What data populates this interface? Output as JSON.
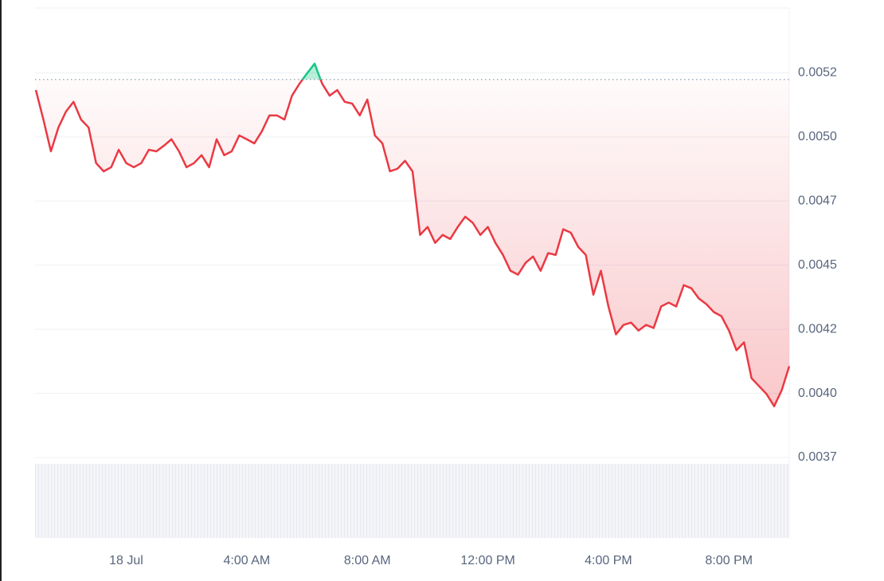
{
  "chart_data": {
    "type": "line",
    "x": [
      -3,
      -2.75,
      -2.5,
      -2.25,
      -2,
      -1.75,
      -1.5,
      -1.25,
      -1,
      -0.75,
      -0.5,
      -0.25,
      0,
      0.25,
      0.5,
      0.75,
      1,
      1.25,
      1.5,
      1.75,
      2,
      2.25,
      2.5,
      2.75,
      3,
      3.25,
      3.5,
      3.75,
      4,
      4.25,
      4.5,
      4.75,
      5,
      5.25,
      5.5,
      5.75,
      6,
      6.25,
      6.5,
      6.75,
      7,
      7.25,
      7.5,
      7.75,
      8,
      8.25,
      8.5,
      8.75,
      9,
      9.25,
      9.5,
      9.75,
      10,
      10.25,
      10.5,
      10.75,
      11,
      11.25,
      11.5,
      11.75,
      12,
      12.25,
      12.5,
      12.75,
      13,
      13.25,
      13.5,
      13.75,
      14,
      14.25,
      14.5,
      14.75,
      15,
      15.25,
      15.5,
      15.75,
      16,
      16.25,
      16.5,
      16.75,
      17,
      17.25,
      17.5,
      17.75,
      18,
      18.25,
      18.5,
      18.75,
      19,
      19.25,
      19.5,
      19.75,
      20,
      20.25,
      20.5,
      20.75,
      21,
      21.25,
      21.5,
      21.75,
      22
    ],
    "values": [
      0.005183,
      0.005068,
      0.004944,
      0.005037,
      0.005099,
      0.005137,
      0.005068,
      0.005037,
      0.004898,
      0.004866,
      0.004882,
      0.00495,
      0.004898,
      0.004882,
      0.004898,
      0.00495,
      0.004944,
      0.004966,
      0.004991,
      0.004944,
      0.004882,
      0.004898,
      0.004929,
      0.004882,
      0.004991,
      0.004929,
      0.004944,
      0.005006,
      0.004991,
      0.004975,
      0.005022,
      0.005084,
      0.005084,
      0.005068,
      0.005161,
      0.005208,
      0.005248,
      0.005286,
      0.005208,
      0.005161,
      0.005183,
      0.005137,
      0.00513,
      0.005084,
      0.005146,
      0.005006,
      0.004975,
      0.004866,
      0.004876,
      0.004907,
      0.004866,
      0.004618,
      0.004649,
      0.004587,
      0.004618,
      0.004602,
      0.004649,
      0.004689,
      0.004665,
      0.004618,
      0.004649,
      0.004587,
      0.00454,
      0.004478,
      0.004463,
      0.004509,
      0.004534,
      0.004478,
      0.004547,
      0.00454,
      0.00464,
      0.004627,
      0.004571,
      0.00454,
      0.004385,
      0.004478,
      0.004339,
      0.00423,
      0.004267,
      0.004276,
      0.004245,
      0.004267,
      0.004255,
      0.004339,
      0.004354,
      0.004339,
      0.004422,
      0.00441,
      0.00437,
      0.004348,
      0.004317,
      0.004301,
      0.004245,
      0.004168,
      0.004199,
      0.004059,
      0.004028,
      0.003997,
      0.00395,
      0.004012,
      0.004106
    ],
    "baseline": 0.005224,
    "up_color": "#16c784",
    "down_color": "#ea3943",
    "xlim": [
      -3,
      22
    ],
    "xticks": [
      {
        "value": 0,
        "label": "18 Jul"
      },
      {
        "value": 4,
        "label": "4:00 AM"
      },
      {
        "value": 8,
        "label": "8:00 AM"
      },
      {
        "value": 12,
        "label": "12:00 PM"
      },
      {
        "value": 16,
        "label": "4:00 PM"
      },
      {
        "value": 20,
        "label": "8:00 PM"
      }
    ],
    "ylim": [
      0.00375,
      0.0055
    ],
    "yticks": [
      {
        "value": 0.00525,
        "label": "0.0052"
      },
      {
        "value": 0.005,
        "label": "0.0050"
      },
      {
        "value": 0.00475,
        "label": "0.0047"
      },
      {
        "value": 0.0045,
        "label": "0.0045"
      },
      {
        "value": 0.00425,
        "label": "0.0042"
      },
      {
        "value": 0.004,
        "label": "0.0040"
      },
      {
        "value": 0.00375,
        "label": "0.0037"
      }
    ],
    "grid": true
  }
}
